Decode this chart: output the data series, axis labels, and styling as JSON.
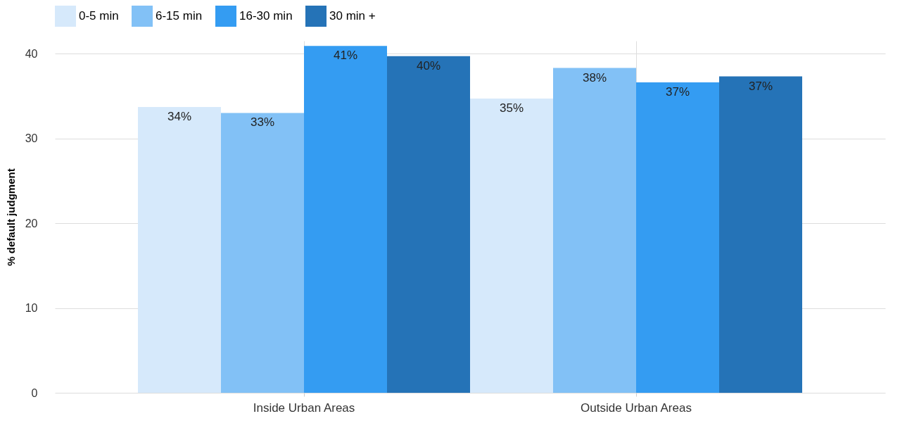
{
  "chart_data": {
    "type": "bar",
    "ylabel": "% default judgment",
    "categories": [
      "Inside Urban Areas",
      "Outside Urban Areas"
    ],
    "series": [
      {
        "name": "0-5 min",
        "color": "#d6e9fb",
        "values": [
          33.7,
          34.7
        ],
        "value_labels": [
          "34%",
          "35%"
        ]
      },
      {
        "name": "6-15 min",
        "color": "#82c1f6",
        "values": [
          33.0,
          38.3
        ],
        "value_labels": [
          "33%",
          "38%"
        ]
      },
      {
        "name": "16-30 min",
        "color": "#349cf2",
        "values": [
          40.9,
          36.6
        ],
        "value_labels": [
          "41%",
          "37%"
        ]
      },
      {
        "name": "30 min +",
        "color": "#2573b7",
        "values": [
          39.7,
          37.3
        ],
        "value_labels": [
          "40%",
          "37%"
        ]
      }
    ],
    "ylim": [
      0,
      41.5
    ],
    "yticks": [
      0,
      10,
      20,
      30,
      40
    ],
    "grid": true,
    "legend": "top"
  }
}
